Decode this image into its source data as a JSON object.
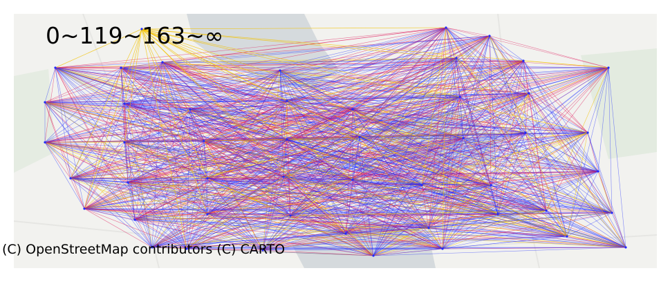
{
  "map": {
    "legend_label": "0~119~163~∞",
    "attribution": "(C) OpenStreetMap contributors (C) CARTO",
    "edge_colors": {
      "low": "#1f2bff",
      "mid": "#e0185a",
      "high": "#f2c200"
    },
    "basemap_colors": {
      "land": "#f2f2ef",
      "water": "#d5dadd",
      "park": "#e3ebe0"
    },
    "nodes_layout": "grid-network",
    "edge_count_shown": "dense all-pairs flow network"
  }
}
